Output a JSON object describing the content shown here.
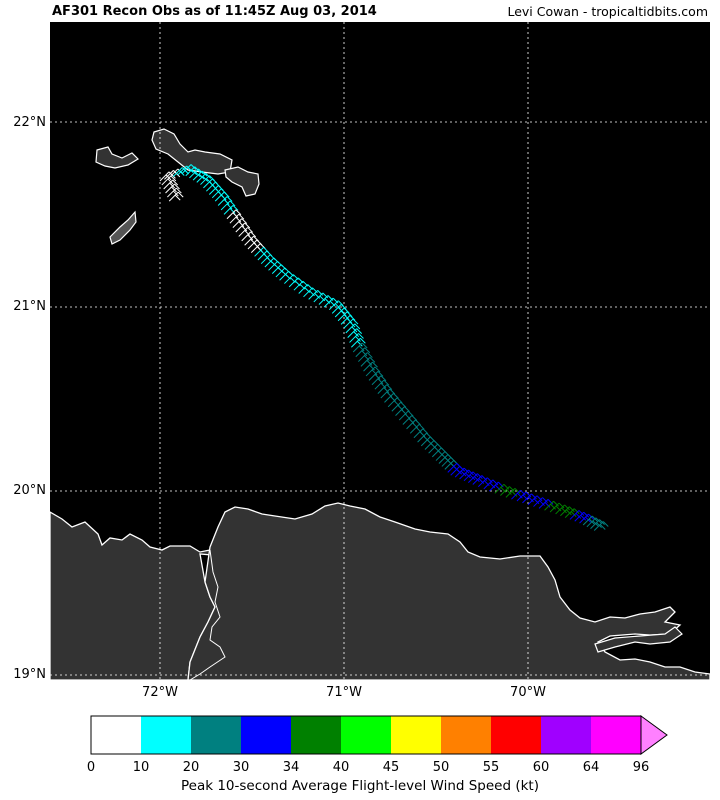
{
  "header": {
    "title": "AF301 Recon Obs as of 11:45Z Aug 03, 2014",
    "credit": "Levi Cowan - tropicaltidbits.com"
  },
  "map": {
    "background": "#000000",
    "land_color": "#333333",
    "coast_color": "#ffffff",
    "grid_color": "#ffffff",
    "lat_labels": [
      "22°N",
      "21°N",
      "20°N",
      "19°N"
    ],
    "lon_labels": [
      "72°W",
      "71°W",
      "70°W"
    ],
    "flight_track": [
      {
        "lon": -71.95,
        "lat": 21.57,
        "kt": 5
      },
      {
        "lon": -72.0,
        "lat": 21.68,
        "kt": 8
      },
      {
        "lon": -71.88,
        "lat": 21.72,
        "kt": 12
      },
      {
        "lon": -71.78,
        "lat": 21.66,
        "kt": 14
      },
      {
        "lon": -71.7,
        "lat": 21.57,
        "kt": 15
      },
      {
        "lon": -71.62,
        "lat": 21.45,
        "kt": 8
      },
      {
        "lon": -71.54,
        "lat": 21.33,
        "kt": 6
      },
      {
        "lon": -71.45,
        "lat": 21.23,
        "kt": 14
      },
      {
        "lon": -71.35,
        "lat": 21.14,
        "kt": 16
      },
      {
        "lon": -71.22,
        "lat": 21.05,
        "kt": 17
      },
      {
        "lon": -71.08,
        "lat": 20.98,
        "kt": 18
      },
      {
        "lon": -71.0,
        "lat": 20.88,
        "kt": 16
      },
      {
        "lon": -70.95,
        "lat": 20.75,
        "kt": 20
      },
      {
        "lon": -70.88,
        "lat": 20.62,
        "kt": 22
      },
      {
        "lon": -70.8,
        "lat": 20.5,
        "kt": 24
      },
      {
        "lon": -70.7,
        "lat": 20.38,
        "kt": 25
      },
      {
        "lon": -70.6,
        "lat": 20.26,
        "kt": 26
      },
      {
        "lon": -70.5,
        "lat": 20.16,
        "kt": 28
      },
      {
        "lon": -70.42,
        "lat": 20.08,
        "kt": 31
      },
      {
        "lon": -70.3,
        "lat": 20.03,
        "kt": 32
      },
      {
        "lon": -70.15,
        "lat": 19.97,
        "kt": 35
      },
      {
        "lon": -70.0,
        "lat": 19.92,
        "kt": 32
      },
      {
        "lon": -69.85,
        "lat": 19.87,
        "kt": 36
      },
      {
        "lon": -69.72,
        "lat": 19.82,
        "kt": 31
      },
      {
        "lon": -69.62,
        "lat": 19.77,
        "kt": 22
      }
    ]
  },
  "colorbar": {
    "label": "Peak 10-second Average Flight-level Wind Speed (kt)",
    "ticks": [
      "0",
      "10",
      "20",
      "30",
      "34",
      "40",
      "45",
      "50",
      "55",
      "60",
      "64",
      "96"
    ],
    "colors": [
      "#ffffff",
      "#00ffff",
      "#008080",
      "#0000ff",
      "#008000",
      "#00ff00",
      "#ffff00",
      "#ff8000",
      "#ff0000",
      "#a000ff",
      "#ff00ff"
    ],
    "extend_color": "#ff80ff"
  }
}
